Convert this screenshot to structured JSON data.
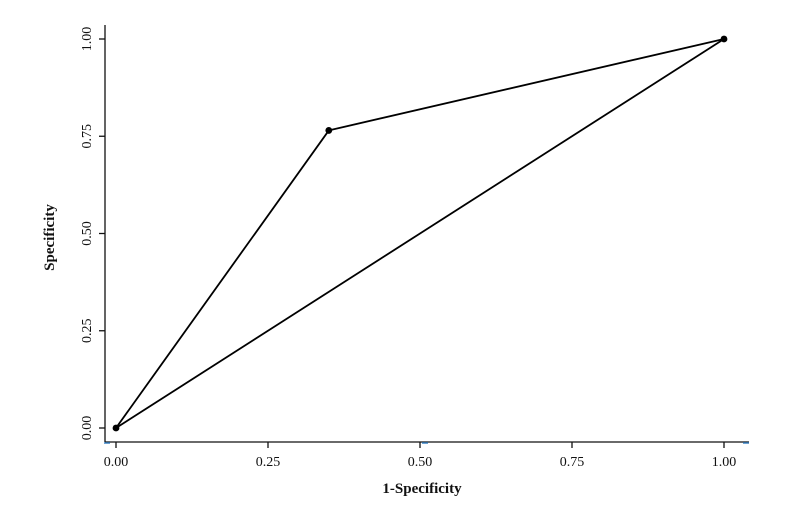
{
  "chart_data": {
    "type": "line",
    "title": "",
    "xlabel": "1-Specificity",
    "ylabel": "Specificity",
    "xlim": [
      0,
      1
    ],
    "ylim": [
      0,
      1
    ],
    "x_ticks": [
      "0.00",
      "0.25",
      "0.50",
      "0.75",
      "1.00"
    ],
    "y_ticks": [
      "0.00",
      "0.25",
      "0.50",
      "0.75",
      "1.00"
    ],
    "grid": false,
    "legend": "none",
    "series": [
      {
        "x": [
          0.0,
          0.35,
          1.0
        ],
        "y": [
          0.0,
          0.765,
          1.0
        ],
        "markers": true
      },
      {
        "x": [
          0.0,
          1.0
        ],
        "y": [
          0.0,
          1.0
        ],
        "markers": false
      }
    ]
  }
}
